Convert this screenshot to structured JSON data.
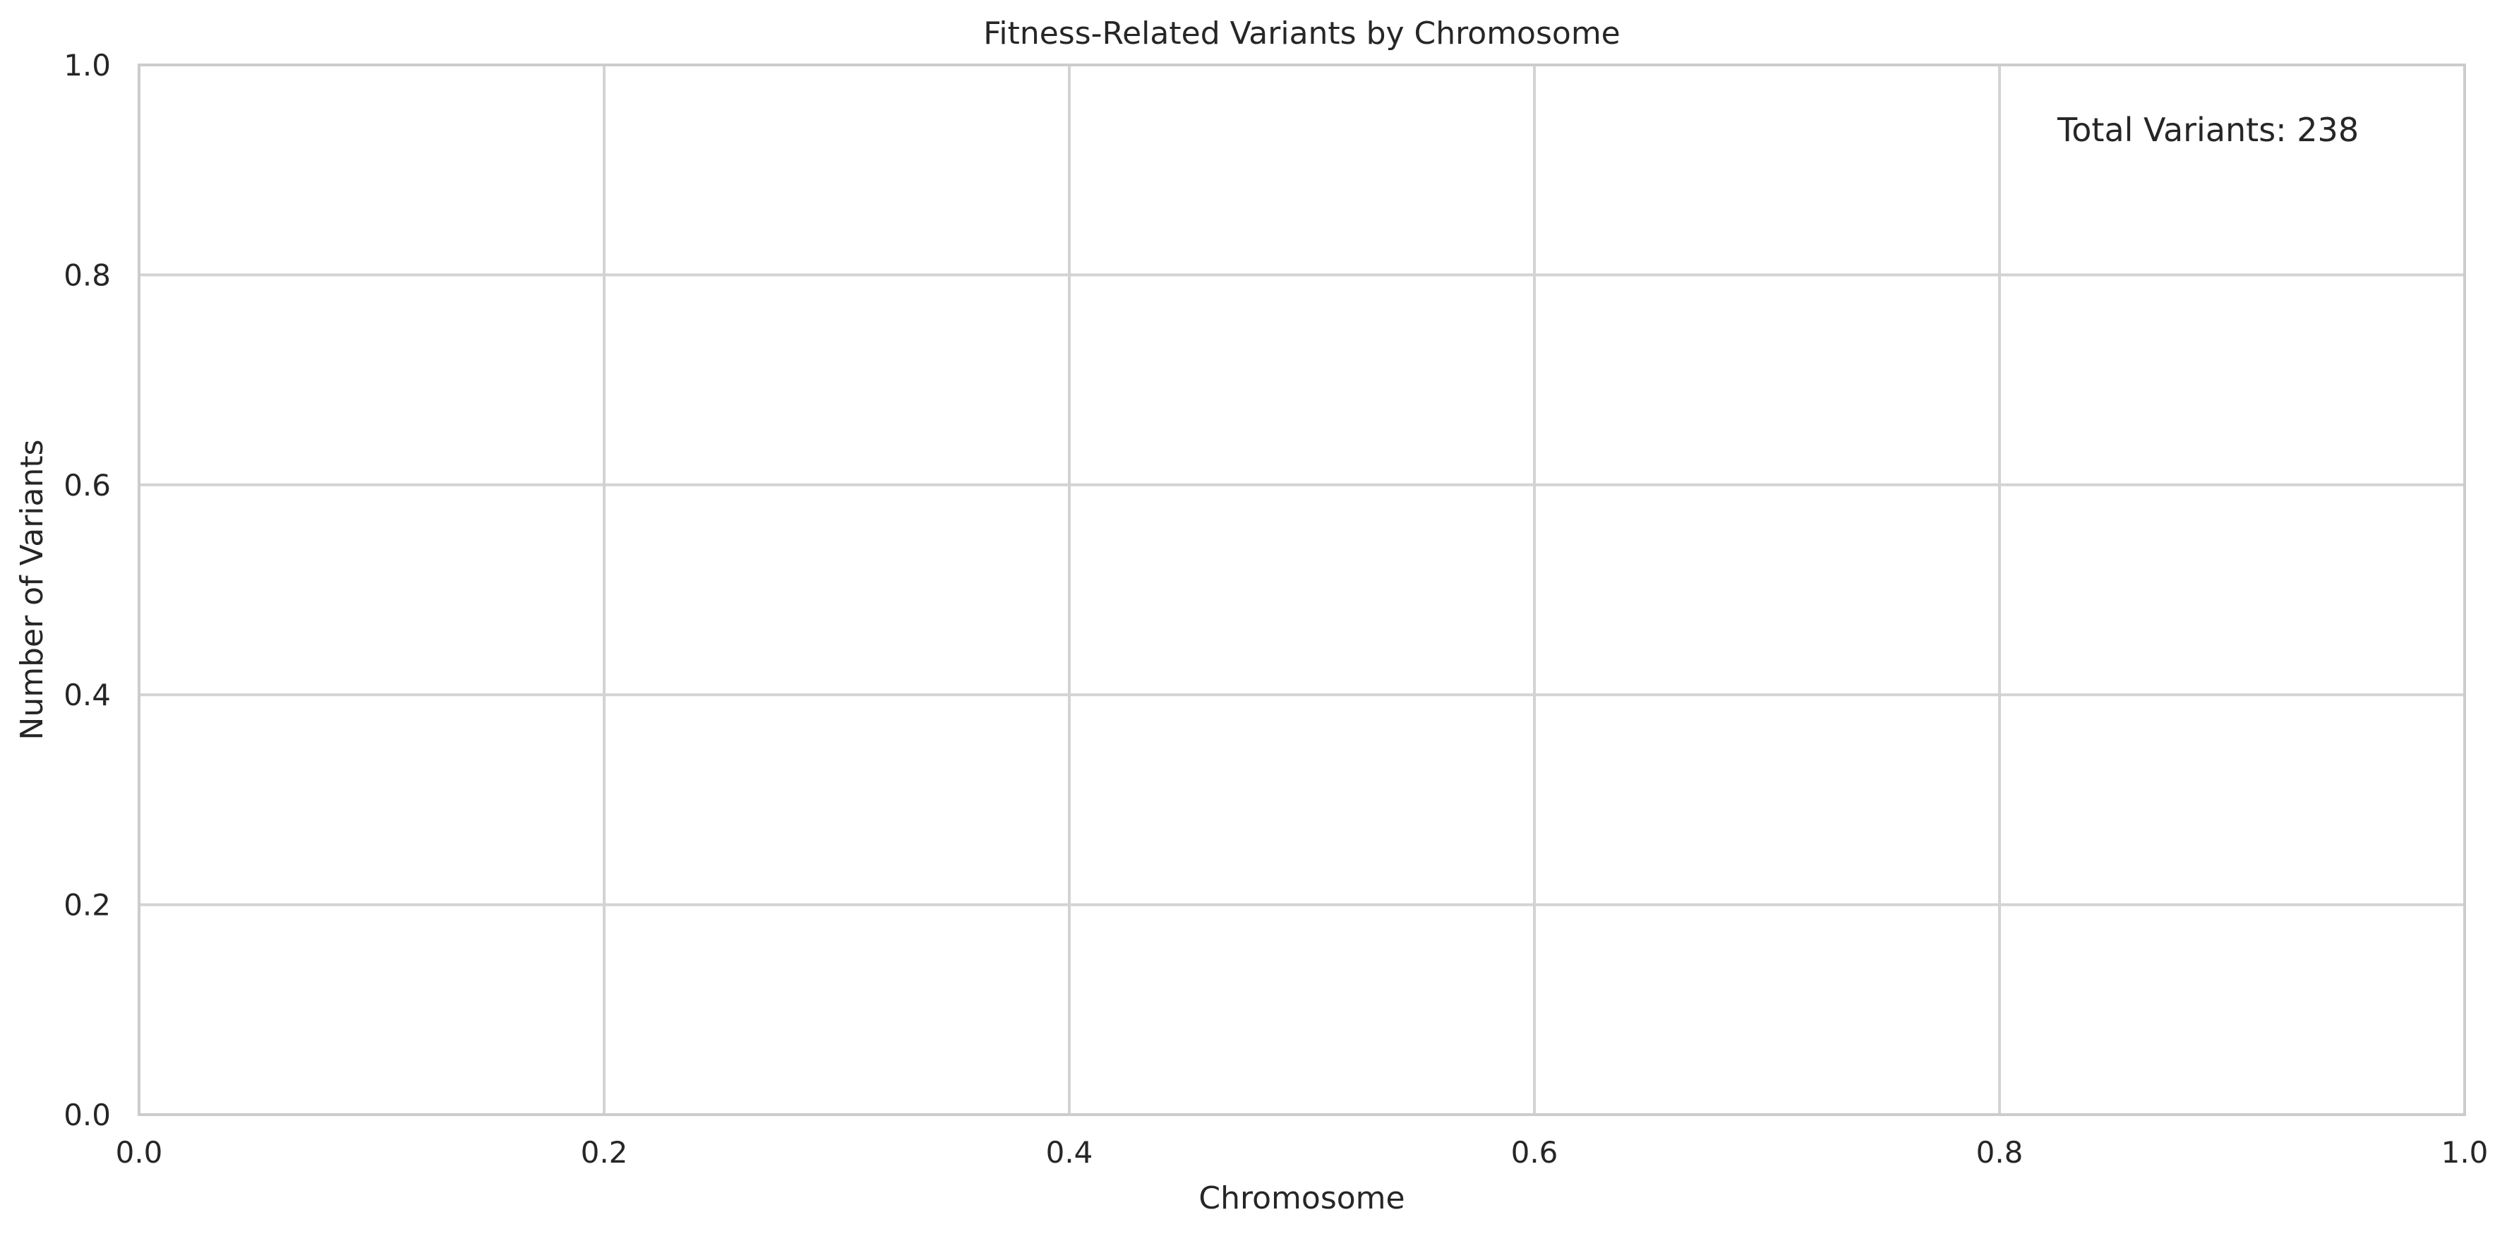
{
  "chart_data": {
    "type": "bar",
    "title": "Fitness-Related Variants by Chromosome",
    "xlabel": "Chromosome",
    "ylabel": "Number of Variants",
    "xlim": [
      0,
      1
    ],
    "ylim": [
      0,
      1
    ],
    "x_ticks": [
      "0.0",
      "0.2",
      "0.4",
      "0.6",
      "0.8",
      "1.0"
    ],
    "y_ticks": [
      "0.0",
      "0.2",
      "0.4",
      "0.6",
      "0.8",
      "1.0"
    ],
    "categories": [],
    "values": [],
    "grid": true,
    "annotation": "Total Variants: 238",
    "annotation_placement": "top-right"
  },
  "colors": {
    "grid": "#d3d3d3",
    "spine": "#cccccc",
    "text": "#262626",
    "background": "#ffffff"
  }
}
